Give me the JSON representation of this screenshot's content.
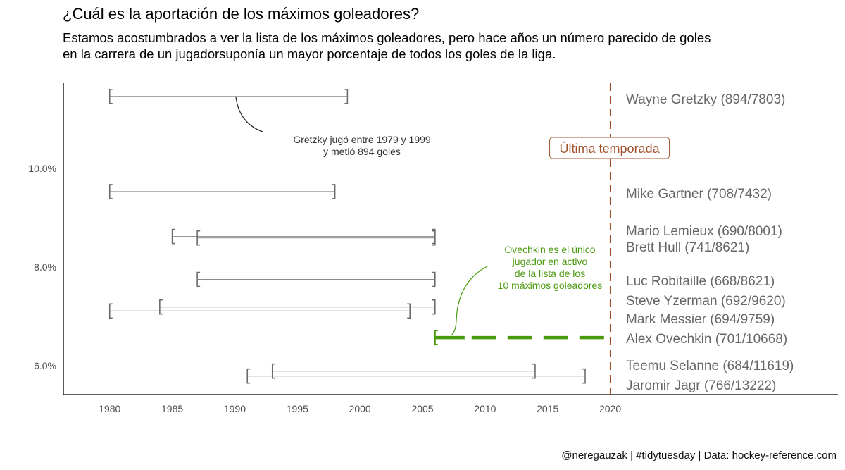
{
  "title": "¿Cuál es la aportación de los máximos goleadores?",
  "subtitle": [
    "Estamos acostumbrados a ver la lista de los máximos goleadores, pero hace años un número parecido de goles",
    "en la carrera de un jugadorsuponía un mayor porcentaje de todos los goles de la liga."
  ],
  "caption": "@neregauzak | #tidytuesday | Data: hockey-reference.com",
  "colors": {
    "range": "#6b6b6b",
    "highlight": "#4a9a0f",
    "reference": "#a0522d",
    "label": "#666666"
  },
  "chart_data": {
    "type": "range",
    "x_axis": {
      "min": 1976.3,
      "max": 2038.2,
      "ticks": [
        1980,
        1985,
        1990,
        1995,
        2000,
        2005,
        2010,
        2015,
        2020
      ]
    },
    "y_axis": {
      "ticks": [
        0.06,
        0.08,
        0.1
      ],
      "tick_labels": [
        "6.0%",
        "8.0%",
        "10.0%"
      ]
    },
    "reference_line": {
      "x": 2020,
      "label": "Última temporada"
    },
    "series": [
      {
        "name": "Wayne Gretzky",
        "label": "Wayne Gretzky (894/7803)",
        "start": 1980,
        "end": 1999,
        "y": 0.1146,
        "highlight": false
      },
      {
        "name": "Mike Gartner",
        "label": "Mike Gartner (708/7432)",
        "start": 1980,
        "end": 1998,
        "y": 0.0953,
        "highlight": false
      },
      {
        "name": "Mario Lemieux",
        "label": "Mario Lemieux (690/8001)",
        "start": 1985,
        "end": 2006,
        "y": 0.0862,
        "highlight": false
      },
      {
        "name": "Brett Hull",
        "label": "Brett Hull (741/8621)",
        "start": 1987,
        "end": 2006,
        "y": 0.0859,
        "highlight": false
      },
      {
        "name": "Luc Robitaille",
        "label": "Luc Robitaille (668/8621)",
        "start": 1987,
        "end": 2006,
        "y": 0.0775,
        "highlight": false
      },
      {
        "name": "Steve Yzerman",
        "label": "Steve Yzerman (692/9620)",
        "start": 1984,
        "end": 2006,
        "y": 0.0719,
        "highlight": false
      },
      {
        "name": "Mark Messier",
        "label": "Mark Messier (694/9759)",
        "start": 1980,
        "end": 2004,
        "y": 0.0711,
        "highlight": false
      },
      {
        "name": "Alex Ovechkin",
        "label": "Alex Ovechkin (701/10668)",
        "start": 2006,
        "end": 2020,
        "y": 0.0657,
        "highlight": true
      },
      {
        "name": "Teemu Selanne",
        "label": "Teemu Selanne (684/11619)",
        "start": 1993,
        "end": 2014,
        "y": 0.0589,
        "highlight": false
      },
      {
        "name": "Jaromir Jagr",
        "label": "Jaromir Jagr (766/13222)",
        "start": 1991,
        "end": 2018,
        "y": 0.0579,
        "highlight": false
      }
    ],
    "annotations": [
      {
        "lines": [
          "Gretzky jugó entre 1979 y 1999",
          "y metió 894 goles"
        ],
        "color": "#333333"
      },
      {
        "lines": [
          "Ovechkin es el único",
          "jugador en activo",
          "de la lista de los",
          "10 máximos goleadores"
        ],
        "color": "#4a9a0f"
      }
    ]
  }
}
